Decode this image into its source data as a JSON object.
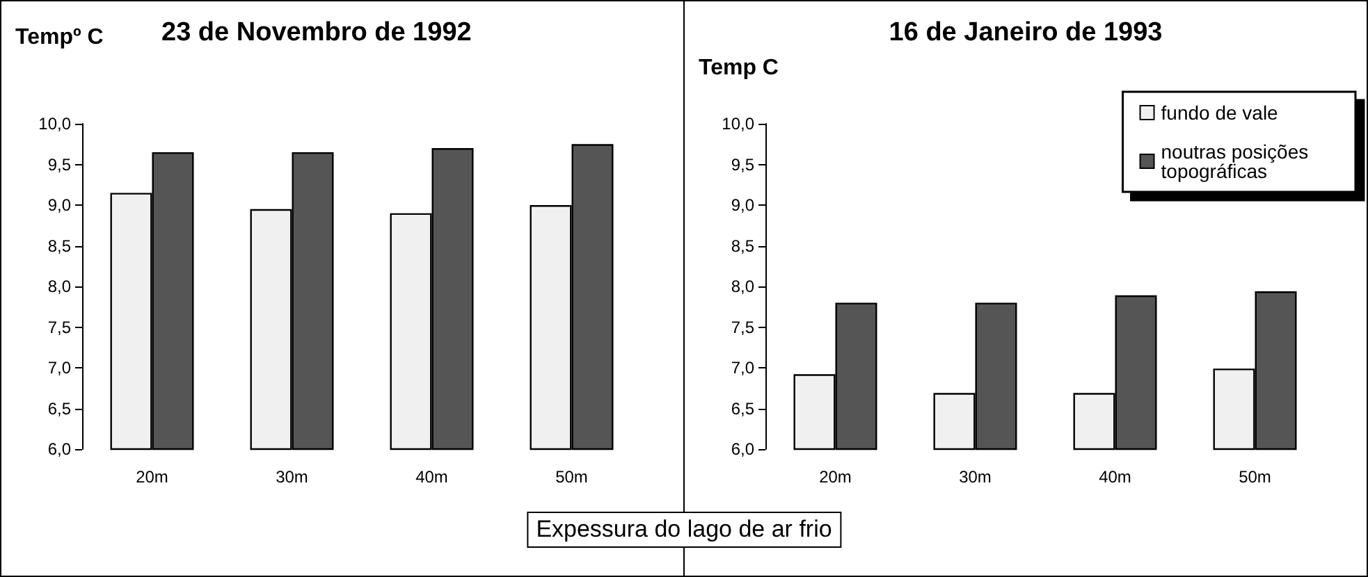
{
  "chart_data": [
    {
      "type": "bar",
      "title": "23 de Novembro de 1992",
      "ylabel": "Tempº C",
      "xlabel": "Expessura do lago de ar frio",
      "categories": [
        "20m",
        "30m",
        "40m",
        "50m"
      ],
      "series": [
        {
          "color": "#f0f0f0",
          "values": [
            9.15,
            8.95,
            8.9,
            9.0
          ]
        },
        {
          "color": "#555555",
          "values": [
            9.65,
            9.65,
            9.7,
            9.75
          ]
        }
      ],
      "ylim": [
        6,
        10
      ],
      "yticks": [
        {
          "value": 6,
          "label": "6,0"
        },
        {
          "value": 6.5,
          "label": "6,5"
        },
        {
          "value": 7,
          "label": "7,0"
        },
        {
          "value": 7.5,
          "label": "7,5"
        },
        {
          "value": 8,
          "label": "8,0"
        },
        {
          "value": 8.5,
          "label": "8,5"
        },
        {
          "value": 9,
          "label": "9,0"
        },
        {
          "value": 9.5,
          "label": "9,5"
        },
        {
          "value": 10,
          "label": "10,0"
        }
      ],
      "grid": false,
      "legend": false
    },
    {
      "type": "bar",
      "title": "16 de Janeiro de 1993",
      "ylabel": "Temp C",
      "categories": [
        "20m",
        "30m",
        "40m",
        "50m"
      ],
      "series": [
        {
          "name": "fundo de vale",
          "color": "#f0f0f0",
          "values": [
            6.92,
            6.69,
            6.69,
            6.99
          ]
        },
        {
          "name": "noutras posições topográficas",
          "color": "#555555",
          "values": [
            7.8,
            7.8,
            7.89,
            7.94
          ]
        }
      ],
      "ylim": [
        6,
        10
      ],
      "yticks": [
        {
          "value": 6,
          "label": "6,0"
        },
        {
          "value": 6.5,
          "label": "6,5"
        },
        {
          "value": 7,
          "label": "7,0"
        },
        {
          "value": 7.5,
          "label": "7,5"
        },
        {
          "value": 8,
          "label": "8,0"
        },
        {
          "value": 8.5,
          "label": "8,5"
        },
        {
          "value": 9,
          "label": "9,0"
        },
        {
          "value": 9.5,
          "label": "9,5"
        },
        {
          "value": 10,
          "label": "10,0"
        }
      ],
      "grid": false,
      "legend": "top right"
    }
  ]
}
